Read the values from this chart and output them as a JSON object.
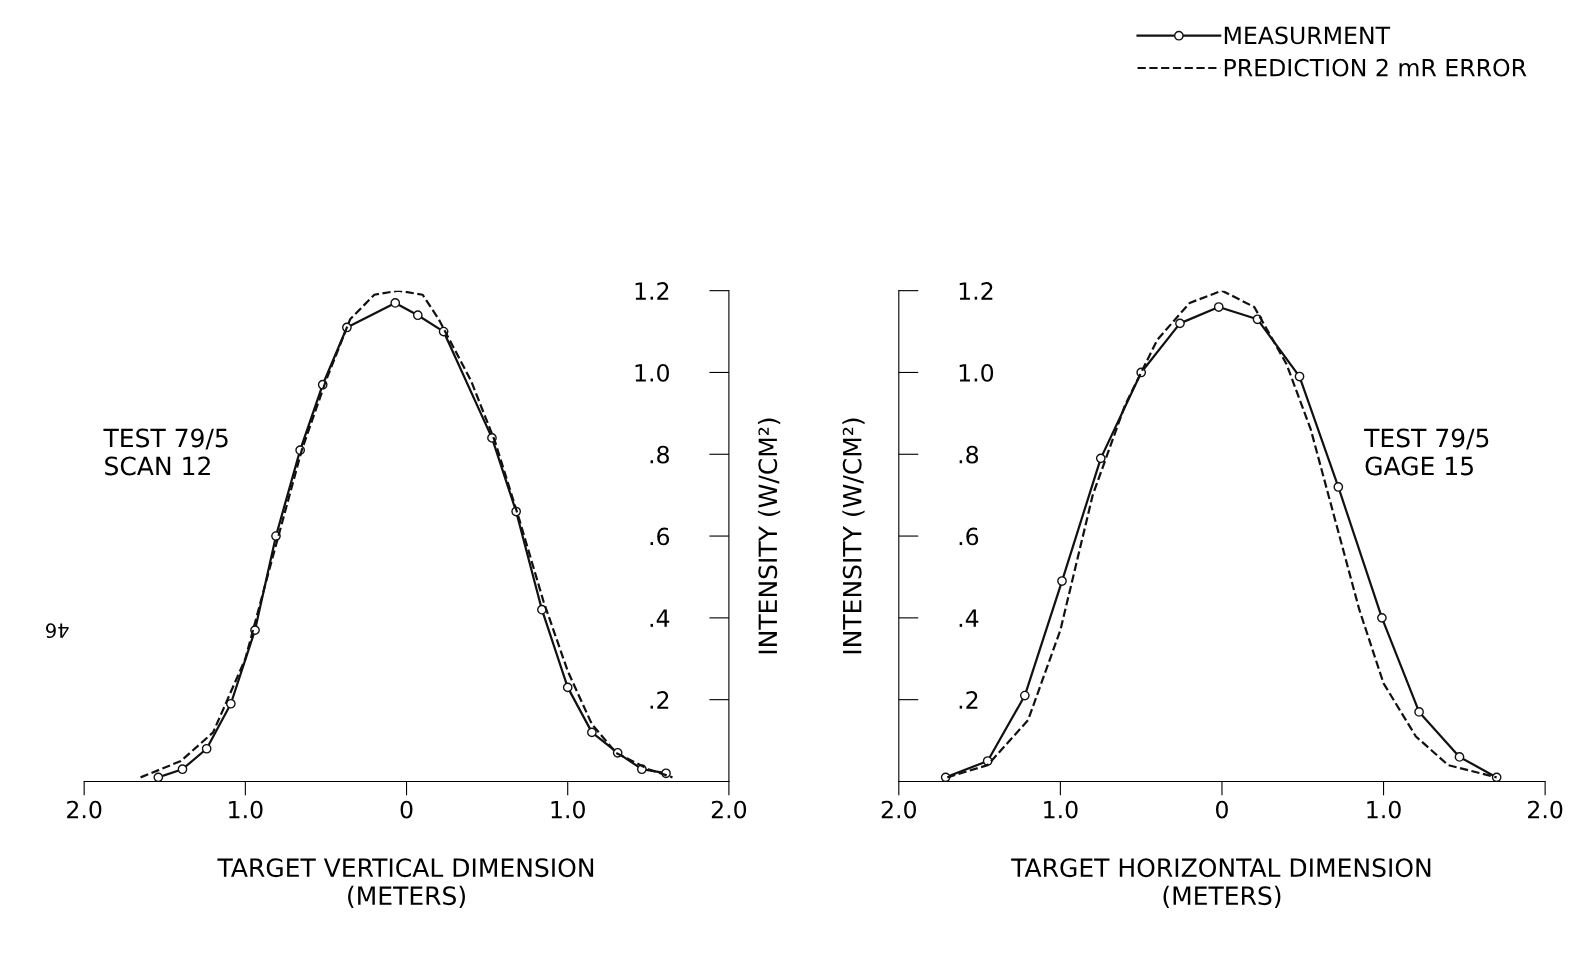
{
  "chart_data": [
    {
      "type": "line",
      "xlabel": "TARGET VERTICAL DIMENSION\n(METERS)",
      "ylabel": "INTENSITY (W/CM²)",
      "xlim": [
        -2,
        2
      ],
      "xticks": [
        {
          "value": -2,
          "label": "2.0"
        },
        {
          "value": -1,
          "label": "1.0"
        },
        0,
        {
          "value": 1,
          "label": "1.0"
        },
        {
          "value": 2,
          "label": "2.0"
        }
      ],
      "ylim": [
        0,
        1.2
      ],
      "yticks": [
        {
          "value": 0.2,
          "label": ".2"
        },
        {
          "value": 0.4,
          "label": ".4"
        },
        {
          "value": 0.6,
          "label": ".6"
        },
        {
          "value": 0.8,
          "label": ".8"
        },
        {
          "value": 1.0,
          "label": "1.0"
        },
        {
          "value": 1.2,
          "label": "1.2"
        }
      ],
      "grid": false,
      "legend": "top right",
      "annotations": [
        "TEST 79/5\nSCAN 12",
        "46"
      ],
      "series": [
        {
          "name": "MEASURMENT",
          "color": "#111111",
          "marker": "circle",
          "line_style": "solid",
          "x": [
            -1.54,
            -1.39,
            -1.24,
            -1.09,
            -0.94,
            -0.81,
            -0.66,
            -0.52,
            -0.37,
            -0.07,
            0.07,
            0.23,
            0.53,
            0.68,
            0.84,
            1.0,
            1.15,
            1.31,
            1.46,
            1.61
          ],
          "values": [
            0.01,
            0.03,
            0.08,
            0.19,
            0.37,
            0.6,
            0.81,
            0.97,
            1.11,
            1.17,
            1.14,
            1.1,
            0.84,
            0.66,
            0.42,
            0.23,
            0.12,
            0.07,
            0.03,
            0.02
          ]
        },
        {
          "name": "PREDICTION 2 mR ERROR",
          "color": "#111111",
          "marker": "none",
          "line_style": "dashed",
          "x": [
            -1.65,
            -1.4,
            -1.2,
            -1.0,
            -0.85,
            -0.65,
            -0.5,
            -0.35,
            -0.2,
            -0.05,
            0.1,
            0.2,
            0.4,
            0.55,
            0.7,
            0.85,
            1.0,
            1.15,
            1.3,
            1.5,
            1.65
          ],
          "values": [
            0.01,
            0.05,
            0.12,
            0.3,
            0.52,
            0.81,
            0.98,
            1.13,
            1.19,
            1.2,
            1.19,
            1.13,
            0.98,
            0.83,
            0.64,
            0.44,
            0.27,
            0.14,
            0.07,
            0.03,
            0.01
          ]
        }
      ]
    },
    {
      "type": "line",
      "xlabel": "TARGET HORIZONTAL DIMENSION\n(METERS)",
      "ylabel": "INTENSITY (W/CM²)",
      "xlim": [
        -2,
        2
      ],
      "xticks": [
        {
          "value": -2,
          "label": "2.0"
        },
        {
          "value": -1,
          "label": "1.0"
        },
        0,
        {
          "value": 1,
          "label": "1.0"
        },
        {
          "value": 2,
          "label": "2.0"
        }
      ],
      "ylim": [
        0,
        1.2
      ],
      "yticks": [
        {
          "value": 0.2,
          "label": ".2"
        },
        {
          "value": 0.4,
          "label": ".4"
        },
        {
          "value": 0.6,
          "label": ".6"
        },
        {
          "value": 0.8,
          "label": ".8"
        },
        {
          "value": 1.0,
          "label": "1.0"
        },
        {
          "value": 1.2,
          "label": "1.2"
        }
      ],
      "grid": false,
      "annotations": [
        "TEST 79/5\nGAGE 15"
      ],
      "series": [
        {
          "color": "#111111",
          "marker": "circle",
          "line_style": "solid",
          "x": [
            -1.71,
            -1.45,
            -1.22,
            -0.99,
            -0.75,
            -0.5,
            -0.26,
            -0.02,
            0.22,
            0.48,
            0.72,
            0.99,
            1.22,
            1.47,
            1.7
          ],
          "values": [
            0.01,
            0.05,
            0.21,
            0.49,
            0.79,
            1.0,
            1.12,
            1.16,
            1.13,
            0.99,
            0.72,
            0.4,
            0.17,
            0.06,
            0.01
          ]
        },
        {
          "color": "#111111",
          "marker": "none",
          "line_style": "dashed",
          "x": [
            -1.7,
            -1.45,
            -1.2,
            -1.0,
            -0.8,
            -0.6,
            -0.4,
            -0.2,
            0.0,
            0.2,
            0.4,
            0.55,
            0.7,
            0.85,
            1.0,
            1.2,
            1.4,
            1.7
          ],
          "values": [
            0.01,
            0.04,
            0.15,
            0.37,
            0.7,
            0.92,
            1.08,
            1.17,
            1.2,
            1.16,
            1.02,
            0.86,
            0.64,
            0.42,
            0.24,
            0.11,
            0.04,
            0.01
          ]
        }
      ]
    }
  ]
}
